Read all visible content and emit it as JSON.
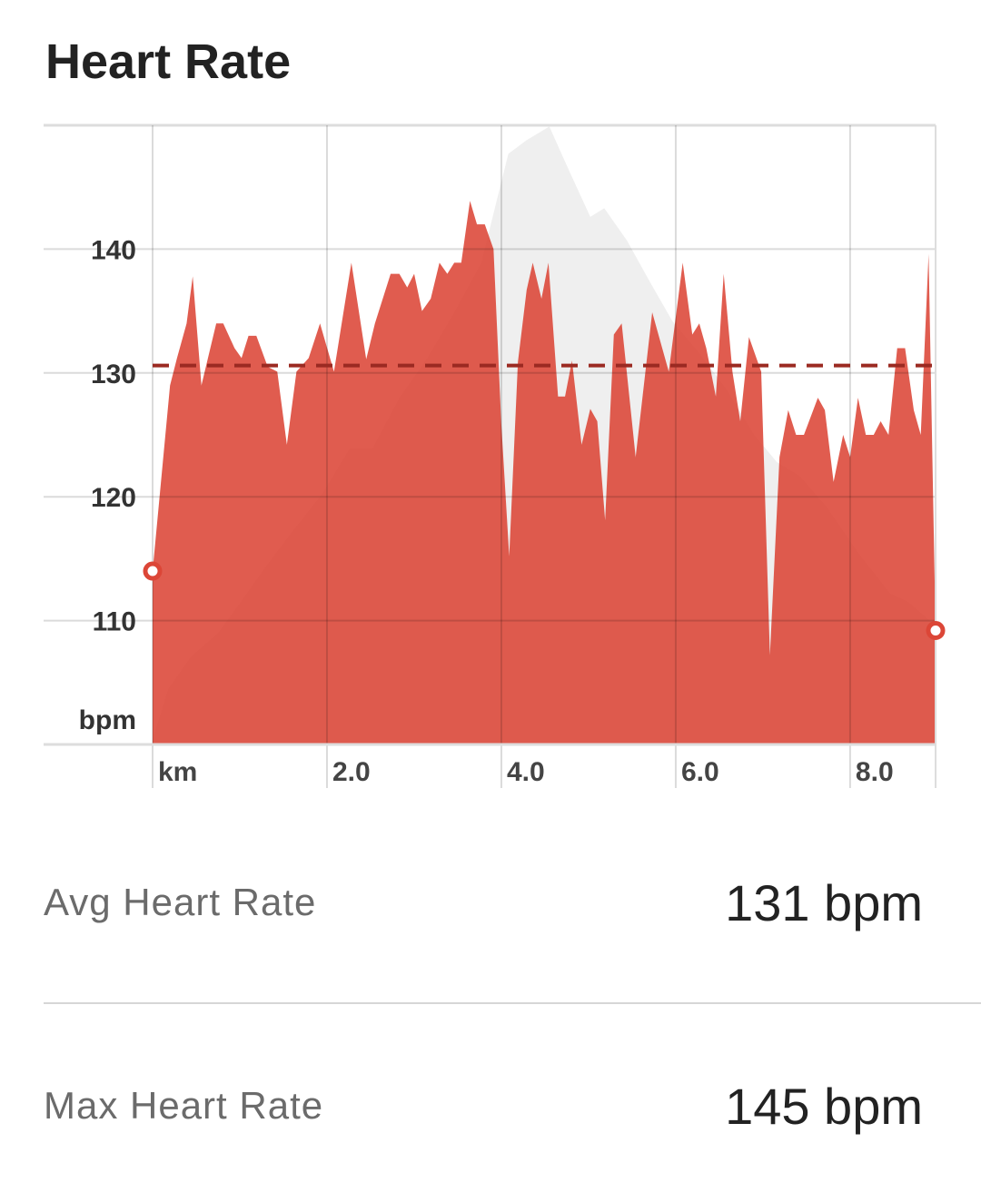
{
  "chart_data": {
    "type": "area",
    "title": "Heart Rate",
    "y_label": "bpm",
    "xlim": [
      0,
      8.98
    ],
    "ylim": [
      100,
      150
    ],
    "xticks": [
      {
        "value": 0,
        "label": "km"
      },
      {
        "value": 2,
        "label": "2.0"
      },
      {
        "value": 4,
        "label": "4.0"
      },
      {
        "value": 6,
        "label": "6.0"
      },
      {
        "value": 8,
        "label": "8.0"
      }
    ],
    "yticks": [
      110,
      120,
      130,
      140
    ],
    "grid": true,
    "avg_line": {
      "value": 130.6,
      "color": "#9b2a22"
    },
    "series": [
      {
        "color": "#efefef",
        "x": [
          0,
          0.18,
          0.44,
          0.75,
          1.01,
          1.27,
          1.58,
          1.95,
          2.26,
          2.52,
          2.83,
          3.15,
          3.46,
          3.77,
          4.08,
          4.29,
          4.55,
          4.76,
          5.02,
          5.18,
          5.44,
          5.7,
          5.96,
          6.27,
          6.58,
          6.9,
          7.16,
          7.42,
          7.73,
          8.09,
          8.46,
          8.67,
          8.98
        ],
        "values": [
          100.4,
          104.5,
          107.1,
          109,
          111.5,
          114.1,
          117,
          120.3,
          123.9,
          123.9,
          128,
          131.2,
          134.9,
          138.9,
          147.7,
          148.8,
          149.9,
          146.6,
          142.6,
          143.3,
          140.7,
          137.4,
          134.2,
          131.6,
          128.7,
          125,
          122.8,
          121.7,
          119.2,
          115.5,
          112.2,
          111.5,
          109.6
        ]
      },
      {
        "color": "#dc4637",
        "x": [
          0,
          0.2,
          0.28,
          0.39,
          0.46,
          0.56,
          0.73,
          0.81,
          0.94,
          1.02,
          1.1,
          1.19,
          1.32,
          1.43,
          1.54,
          1.65,
          1.79,
          1.92,
          2.08,
          2.28,
          2.45,
          2.55,
          2.73,
          2.83,
          2.92,
          3.0,
          3.09,
          3.19,
          3.29,
          3.38,
          3.46,
          3.54,
          3.64,
          3.72,
          3.81,
          3.91,
          4.0,
          4.09,
          4.19,
          4.29,
          4.36,
          4.46,
          4.54,
          4.65,
          4.73,
          4.81,
          4.92,
          5.02,
          5.1,
          5.19,
          5.29,
          5.38,
          5.54,
          5.73,
          5.92,
          6.08,
          6.19,
          6.27,
          6.35,
          6.46,
          6.55,
          6.65,
          6.74,
          6.84,
          6.98,
          7.08,
          7.19,
          7.29,
          7.38,
          7.47,
          7.63,
          7.71,
          7.81,
          7.92,
          8.0,
          8.09,
          8.18,
          8.27,
          8.35,
          8.44,
          8.54,
          8.63,
          8.73,
          8.81,
          8.9,
          8.98
        ],
        "values": [
          114,
          129,
          131.2,
          134,
          137.8,
          129,
          134,
          134,
          132,
          131.2,
          133,
          133,
          130.5,
          130.1,
          124.2,
          130.1,
          131.2,
          134,
          130.1,
          138.9,
          131.1,
          134,
          138,
          138,
          136.9,
          138,
          135,
          136,
          138.9,
          138,
          138.9,
          138.9,
          143.9,
          142,
          142,
          140,
          125.8,
          115.2,
          130.9,
          136.7,
          138.9,
          136,
          138.9,
          128.1,
          128.1,
          131,
          124.2,
          127.1,
          126.1,
          118.1,
          133.1,
          134,
          123.2,
          134.9,
          130.1,
          138.9,
          133.1,
          134,
          132,
          128.1,
          138,
          130.1,
          126.1,
          132.9,
          130.1,
          107.2,
          123.2,
          127,
          125,
          125,
          128,
          127,
          121.2,
          125,
          123.2,
          128,
          125,
          125,
          126.1,
          125,
          132,
          132,
          127,
          125,
          139.6,
          109.2
        ]
      }
    ]
  },
  "stats": [
    {
      "label": "Avg Heart Rate",
      "value": "131 bpm"
    },
    {
      "label": "Max Heart Rate",
      "value": "145 bpm"
    }
  ]
}
